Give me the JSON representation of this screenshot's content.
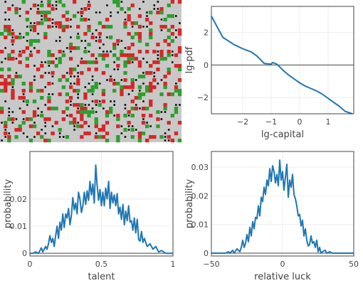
{
  "chart_data": [
    {
      "type": "heatmap",
      "title": "",
      "grid_on": false,
      "rows": 40,
      "cols": 50,
      "colors": {
        "background": "#c8c8c8",
        "red": "#d62728",
        "green": "#2ca02c",
        "black": "#000000"
      },
      "proportions": {
        "background": 0.66,
        "red": 0.12,
        "green": 0.1,
        "black": 0.12
      }
    },
    {
      "type": "line",
      "title": "",
      "xlabel": "lg-capital",
      "ylabel": "lg-pdf",
      "xlim": [
        -3.1,
        1.9
      ],
      "ylim": [
        -3.0,
        3.6
      ],
      "xticks": [
        -2,
        -1,
        0,
        1
      ],
      "yticks": [
        -2,
        0,
        2
      ],
      "xtick_labels": [
        "−2",
        "−1",
        "0",
        "1"
      ],
      "ytick_labels": [
        "−2",
        "0",
        "2"
      ],
      "grid": true,
      "series": [
        {
          "x": [
            -3.1,
            -2.7,
            -2.3,
            -2.0,
            -1.7,
            -1.5,
            -1.25,
            -1.0,
            -0.95,
            -0.8,
            -0.6,
            -0.4,
            -0.2,
            0.0,
            0.2,
            0.4,
            0.6,
            0.8,
            1.0,
            1.2,
            1.4,
            1.6,
            1.85
          ],
          "y": [
            3.0,
            1.7,
            1.25,
            1.0,
            0.8,
            0.55,
            0.1,
            0.05,
            0.15,
            0.05,
            -0.3,
            -0.6,
            -0.85,
            -1.1,
            -1.3,
            -1.45,
            -1.6,
            -1.8,
            -2.05,
            -2.3,
            -2.55,
            -2.85,
            -3.0
          ]
        }
      ]
    },
    {
      "type": "line",
      "title": "",
      "xlabel": "talent",
      "ylabel": "probability",
      "xlim": [
        0,
        1
      ],
      "ylim": [
        -0.001,
        0.0375
      ],
      "xticks": [
        0,
        0.5,
        1
      ],
      "yticks": [
        0,
        0.01,
        0.02
      ],
      "xtick_labels": [
        "0",
        "0.5",
        "1"
      ],
      "ytick_labels": [
        "0",
        "0.01",
        "0.02"
      ],
      "grid": true,
      "series": [
        {
          "x": [
            0.0,
            0.02,
            0.04,
            0.06,
            0.07,
            0.08,
            0.09,
            0.1,
            0.11,
            0.12,
            0.13,
            0.14,
            0.15,
            0.16,
            0.17,
            0.18,
            0.19,
            0.2,
            0.21,
            0.22,
            0.23,
            0.24,
            0.25,
            0.26,
            0.27,
            0.28,
            0.29,
            0.3,
            0.31,
            0.32,
            0.33,
            0.34,
            0.35,
            0.36,
            0.37,
            0.38,
            0.39,
            0.4,
            0.41,
            0.42,
            0.43,
            0.44,
            0.45,
            0.46,
            0.47,
            0.48,
            0.49,
            0.5,
            0.51,
            0.52,
            0.53,
            0.54,
            0.55,
            0.56,
            0.57,
            0.58,
            0.59,
            0.6,
            0.61,
            0.62,
            0.63,
            0.64,
            0.65,
            0.66,
            0.67,
            0.68,
            0.69,
            0.7,
            0.71,
            0.72,
            0.73,
            0.74,
            0.75,
            0.76,
            0.77,
            0.78,
            0.79,
            0.8,
            0.82,
            0.84,
            0.86,
            0.88,
            0.9,
            0.92,
            0.95,
            1.0
          ],
          "y": [
            0.0,
            0.0,
            0.0005,
            0.0,
            0.001,
            0.002,
            0.0005,
            0.0015,
            0.0025,
            0.0015,
            0.0035,
            0.0065,
            0.004,
            0.0055,
            0.0025,
            0.0065,
            0.01,
            0.0055,
            0.0115,
            0.0085,
            0.0145,
            0.0095,
            0.0145,
            0.013,
            0.0165,
            0.0105,
            0.014,
            0.0205,
            0.016,
            0.0185,
            0.0145,
            0.0225,
            0.02,
            0.015,
            0.0175,
            0.0225,
            0.018,
            0.023,
            0.0195,
            0.0265,
            0.0215,
            0.0255,
            0.0185,
            0.0325,
            0.025,
            0.0195,
            0.0235,
            0.0175,
            0.0225,
            0.0175,
            0.024,
            0.02,
            0.0265,
            0.0165,
            0.0225,
            0.0185,
            0.0215,
            0.0175,
            0.022,
            0.0145,
            0.017,
            0.0125,
            0.018,
            0.0105,
            0.0155,
            0.012,
            0.0175,
            0.0115,
            0.012,
            0.0085,
            0.013,
            0.0075,
            0.0125,
            0.005,
            0.0045,
            0.008,
            0.004,
            0.0055,
            0.0025,
            0.0035,
            0.0015,
            0.0025,
            0.0005,
            0.001,
            0.0,
            0.0
          ]
        }
      ]
    },
    {
      "type": "line",
      "title": "",
      "xlabel": "relative luck",
      "ylabel": "probability",
      "xlim": [
        -50,
        50
      ],
      "ylim": [
        -0.001,
        0.0355
      ],
      "xticks": [
        -50,
        0,
        50
      ],
      "yticks": [
        0,
        0.01,
        0.02,
        0.03
      ],
      "xtick_labels": [
        "−50",
        "0",
        "50"
      ],
      "ytick_labels": [
        "0",
        "0.01",
        "0.02",
        "0.03"
      ],
      "grid": true,
      "series": [
        {
          "x": [
            -50,
            -40,
            -38,
            -37,
            -35,
            -34,
            -32,
            -30,
            -29,
            -28,
            -27,
            -26,
            -25,
            -24,
            -23,
            -22,
            -21,
            -20,
            -19,
            -18,
            -17,
            -16,
            -15,
            -14,
            -13,
            -12,
            -11,
            -10,
            -9,
            -8,
            -7,
            -6,
            -5,
            -4,
            -3,
            -2,
            -1,
            0,
            1,
            2,
            3,
            4,
            5,
            6,
            7,
            8,
            9,
            10,
            11,
            12,
            13,
            14,
            15,
            16,
            17,
            18,
            19,
            20,
            21,
            22,
            23,
            24,
            25,
            26,
            27,
            28,
            30,
            31,
            33,
            35,
            37,
            40,
            50
          ],
          "y": [
            0.0,
            0.0,
            0.0005,
            0.0,
            0.001,
            0.0,
            0.0015,
            0.0005,
            0.002,
            0.0045,
            0.002,
            0.0035,
            0.0065,
            0.004,
            0.009,
            0.006,
            0.011,
            0.0085,
            0.0125,
            0.012,
            0.0165,
            0.013,
            0.0195,
            0.018,
            0.023,
            0.0205,
            0.0255,
            0.0235,
            0.0295,
            0.025,
            0.0305,
            0.0285,
            0.0245,
            0.0275,
            0.0235,
            0.0325,
            0.0255,
            0.0285,
            0.022,
            0.0265,
            0.031,
            0.0195,
            0.0255,
            0.023,
            0.0275,
            0.0205,
            0.019,
            0.0165,
            0.013,
            0.0135,
            0.0095,
            0.0115,
            0.006,
            0.0085,
            0.0045,
            0.0025,
            0.003,
            0.006,
            0.0035,
            0.004,
            0.002,
            0.0045,
            0.0005,
            0.002,
            0.0,
            0.0005,
            0.001,
            0.0,
            0.0005,
            0.0,
            0.0,
            0.0,
            0.0
          ]
        }
      ]
    }
  ]
}
